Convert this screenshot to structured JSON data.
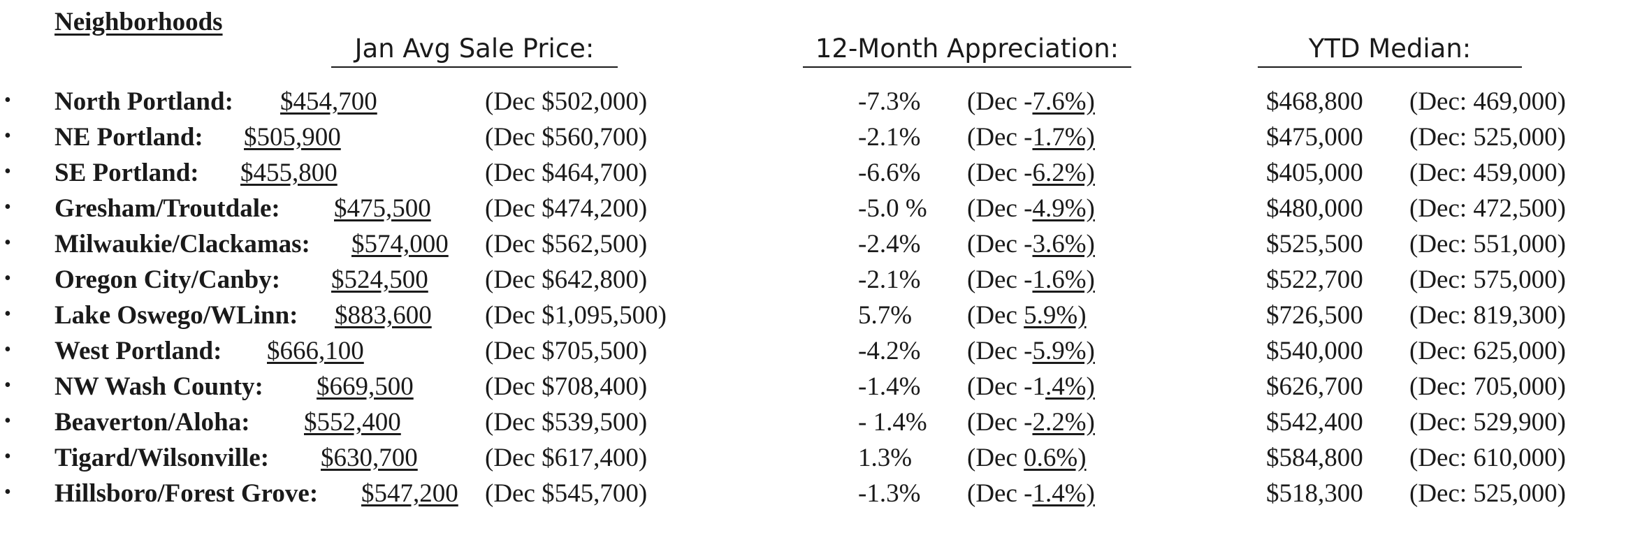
{
  "title": "Neighborhoods",
  "headers": {
    "price": "Jan Avg Sale Price:",
    "appreciation": "12-Month Appreciation:",
    "ytd": "YTD Median:"
  },
  "rows": [
    {
      "bullet": "•",
      "name": "North Portland:",
      "price": "$454,700",
      "dec_price": "(Dec $502,000)",
      "appr": "-7.3%",
      "dec_appr_prefix": "(Dec -",
      "dec_appr_value": "7.6%)",
      "ytd": "$468,800",
      "ytd_dec": "(Dec: 469,000)"
    },
    {
      "bullet": "•",
      "name": "NE Portland:",
      "price": "$505,900",
      "dec_price": "(Dec $560,700)",
      "appr": "-2.1%",
      "dec_appr_prefix": "(Dec -",
      "dec_appr_value": "1.7%)",
      "ytd": "$475,000",
      "ytd_dec": "(Dec: 525,000)"
    },
    {
      "bullet": "•",
      "name": "SE Portland:",
      "price": "$455,800",
      "dec_price": "(Dec $464,700)",
      "appr": "-6.6%",
      "dec_appr_prefix": "(Dec -",
      "dec_appr_value": "6.2%)",
      "ytd": "$405,000",
      "ytd_dec": "(Dec: 459,000)"
    },
    {
      "bullet": "•",
      "name": "Gresham/Troutdale:",
      "price": "$475,500",
      "dec_price": "(Dec $474,200)",
      "appr": "-5.0 %",
      "dec_appr_prefix": "(Dec -",
      "dec_appr_value": "4.9%)",
      "ytd": "$480,000",
      "ytd_dec": "(Dec: 472,500)"
    },
    {
      "bullet": "•",
      "name": "Milwaukie/Clackamas:",
      "price": "$574,000",
      "dec_price": "(Dec $562,500)",
      "appr": "-2.4%",
      "dec_appr_prefix": "(Dec -",
      "dec_appr_value": "3.6%)",
      "ytd": "$525,500",
      "ytd_dec": "(Dec: 551,000)"
    },
    {
      "bullet": "•",
      "name": "Oregon City/Canby:",
      "price": "$524,500",
      "dec_price": "(Dec $642,800)",
      "appr": "-2.1%",
      "dec_appr_prefix": "(Dec -",
      "dec_appr_value": "1.6%)",
      "ytd": "$522,700",
      "ytd_dec": "(Dec: 575,000)"
    },
    {
      "bullet": "•",
      "name": "Lake Oswego/WLinn:",
      "price": "$883,600",
      "dec_price": "(Dec $1,095,500)",
      "appr": "5.7%",
      "dec_appr_prefix": "(Dec ",
      "dec_appr_value": "5.9%)",
      "ytd": "$726,500",
      "ytd_dec": "(Dec: 819,300)"
    },
    {
      "bullet": "•",
      "name": "West Portland:",
      "price": "$666,100",
      "dec_price": "(Dec $705,500)",
      "appr": "-4.2%",
      "dec_appr_prefix": "(Dec -",
      "dec_appr_value": "5.9%)",
      "ytd": "$540,000",
      "ytd_dec": "(Dec: 625,000)"
    },
    {
      "bullet": "•",
      "name": "NW Wash County:",
      "price": "$669,500",
      "dec_price": "(Dec $708,400)",
      "appr": "-1.4%",
      "dec_appr_prefix": "(Dec -1",
      "dec_appr_value": ".4%)",
      "ytd": "$626,700",
      "ytd_dec": "(Dec: 705,000)"
    },
    {
      "bullet": "•",
      "name": "Beaverton/Aloha:",
      "price": "$552,400",
      "dec_price": "(Dec $539,500)",
      "appr": "- 1.4%",
      "dec_appr_prefix": "(Dec -",
      "dec_appr_value": "2.2%)",
      "ytd": "$542,400",
      "ytd_dec": "(Dec: 529,900)"
    },
    {
      "bullet": "•",
      "name": "Tigard/Wilsonville:",
      "price": "$630,700",
      "dec_price": "(Dec $617,400)",
      "appr": "1.3%",
      "dec_appr_prefix": "(Dec ",
      "dec_appr_value": "0.6%)",
      "ytd": "$584,800",
      "ytd_dec": "(Dec: 610,000)"
    },
    {
      "bullet": "•",
      "name": "Hillsboro/Forest Grove:",
      "price": "$547,200",
      "dec_price": "(Dec $545,700)",
      "appr": "-1.3%",
      "dec_appr_prefix": "(Dec -",
      "dec_appr_value": "1.4%)",
      "ytd": "$518,300",
      "ytd_dec": "(Dec: 525,000)"
    }
  ]
}
